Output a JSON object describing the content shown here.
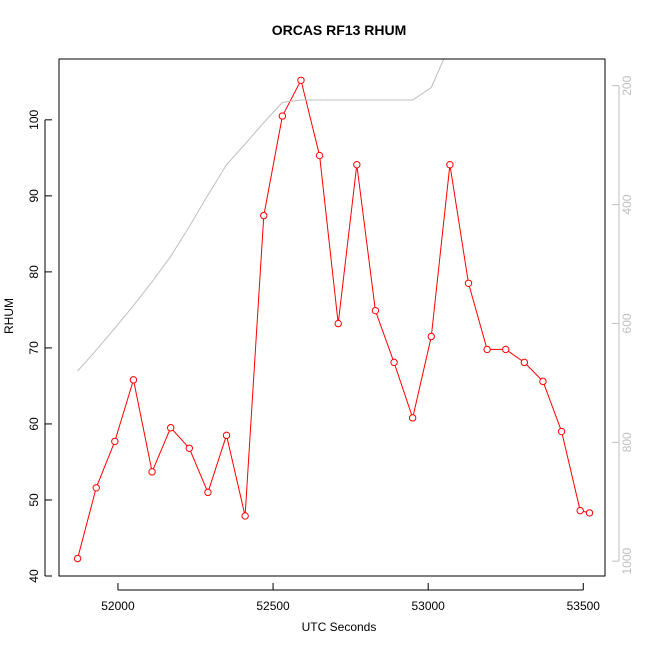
{
  "chart_data": {
    "type": "line",
    "title": "ORCAS RF13 RHUM",
    "xlabel": "UTC Seconds",
    "ylabel": "RHUM",
    "xlim": [
      51810,
      53570
    ],
    "ylim": [
      40,
      108
    ],
    "x_ticks": [
      52000,
      52500,
      53000,
      53500
    ],
    "y_ticks": [
      40,
      50,
      60,
      70,
      80,
      90,
      100
    ],
    "y2_ticks": [
      200,
      400,
      600,
      800,
      1000
    ],
    "y2lim": [
      1025,
      155
    ],
    "y2_reversed": true,
    "grid": false,
    "series": [
      {
        "color": "#ff0000",
        "marker": "open-circle",
        "x": [
          51870,
          51930,
          51990,
          52050,
          52110,
          52170,
          52230,
          52290,
          52350,
          52410,
          52470,
          52530,
          52590,
          52650,
          52710,
          52770,
          52830,
          52890,
          52950,
          53010,
          53070,
          53130,
          53190,
          53250,
          53310,
          53370,
          53430,
          53490,
          53520
        ],
        "values": [
          42.3,
          51.6,
          57.7,
          65.8,
          53.7,
          59.5,
          56.8,
          51.0,
          58.5,
          47.9,
          87.4,
          100.5,
          105.2,
          95.3,
          73.2,
          94.1,
          74.9,
          68.1,
          60.8,
          71.5,
          94.1,
          78.5,
          69.8,
          69.8,
          68.1,
          65.6,
          59.0,
          48.6,
          48.3
        ]
      },
      {
        "color": "#bebebe",
        "axis": "right",
        "x": [
          51870,
          51930,
          51990,
          52050,
          52110,
          52170,
          52230,
          52290,
          52350,
          52410,
          52470,
          52530,
          52590,
          52650,
          52710,
          52770,
          52830,
          52890,
          52950,
          53010,
          53050
        ],
        "values": [
          680,
          645,
          608,
          570,
          530,
          487,
          437,
          384,
          333,
          298,
          262,
          228,
          224,
          224,
          224,
          224,
          224,
          224,
          224,
          203,
          155
        ]
      }
    ]
  }
}
